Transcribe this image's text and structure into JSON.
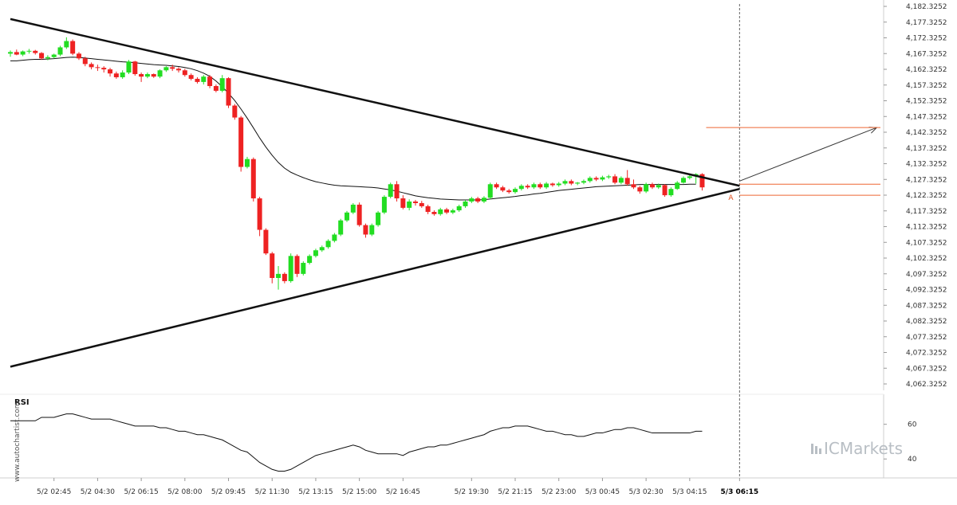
{
  "chart_data": {
    "type": "candlestick",
    "y_ticks": [
      "4,182.3252",
      "4,177.3252",
      "4,172.3252",
      "4,167.3252",
      "4,162.3252",
      "4,157.3252",
      "4,152.3252",
      "4,147.3252",
      "4,142.3252",
      "4,137.3252",
      "4,132.3252",
      "4,127.3252",
      "4,122.3252",
      "4,117.3252",
      "4,112.3252",
      "4,107.3252",
      "4,102.3252",
      "4,097.3252",
      "4,092.3252",
      "4,087.3252",
      "4,082.3252",
      "4,077.3252",
      "4,072.3252",
      "4,067.3252",
      "4,062.3252"
    ],
    "ylim": [
      4062.3252,
      4182.3252
    ],
    "x_ticks": [
      "5/2 02:45",
      "5/2 04:30",
      "5/2 06:15",
      "5/2 08:00",
      "5/2 09:45",
      "5/2 11:30",
      "5/2 13:15",
      "5/2 15:00",
      "5/2 16:45",
      "5/2 19:30",
      "5/2 21:15",
      "5/2 23:00",
      "5/3 00:45",
      "5/3 02:30",
      "5/3 04:15",
      "5/3 06:15"
    ],
    "current_time_label": "5/3 06:15",
    "candles": [
      [
        4167.3,
        4168.3,
        4166.3,
        4167.8
      ],
      [
        4167.8,
        4168.6,
        4166.8,
        4167.0
      ],
      [
        4167.0,
        4168.3,
        4166.5,
        4168.0
      ],
      [
        4168.0,
        4168.8,
        4167.3,
        4168.2
      ],
      [
        4168.2,
        4168.5,
        4167.0,
        4167.5
      ],
      [
        4167.5,
        4167.8,
        4165.3,
        4165.8
      ],
      [
        4165.8,
        4166.8,
        4165.2,
        4166.2
      ],
      [
        4166.2,
        4167.3,
        4165.8,
        4167.0
      ],
      [
        4167.0,
        4169.8,
        4166.5,
        4169.3
      ],
      [
        4169.3,
        4172.5,
        4168.8,
        4171.3
      ],
      [
        4171.3,
        4171.8,
        4166.8,
        4167.3
      ],
      [
        4167.3,
        4167.8,
        4165.3,
        4165.8
      ],
      [
        4165.8,
        4166.3,
        4163.3,
        4164.0
      ],
      [
        4164.0,
        4164.5,
        4162.3,
        4163.0
      ],
      [
        4163.0,
        4163.8,
        4161.8,
        4162.8
      ],
      [
        4162.8,
        4163.3,
        4161.3,
        4162.3
      ],
      [
        4162.3,
        4162.8,
        4160.0,
        4161.0
      ],
      [
        4161.0,
        4161.6,
        4159.3,
        4159.8
      ],
      [
        4159.8,
        4162.0,
        4159.3,
        4161.3
      ],
      [
        4161.3,
        4165.3,
        4160.8,
        4164.8
      ],
      [
        4164.8,
        4165.0,
        4160.3,
        4160.8
      ],
      [
        4160.8,
        4161.3,
        4158.3,
        4160.0
      ],
      [
        4160.0,
        4161.3,
        4159.5,
        4160.8
      ],
      [
        4160.8,
        4161.0,
        4159.6,
        4160.0
      ],
      [
        4160.0,
        4162.3,
        4159.5,
        4162.0
      ],
      [
        4162.0,
        4163.3,
        4161.5,
        4163.0
      ],
      [
        4163.0,
        4163.8,
        4161.8,
        4162.5
      ],
      [
        4162.5,
        4163.0,
        4161.3,
        4162.0
      ],
      [
        4162.0,
        4162.5,
        4160.0,
        4160.5
      ],
      [
        4160.5,
        4161.0,
        4158.8,
        4159.3
      ],
      [
        4159.3,
        4159.8,
        4157.8,
        4158.3
      ],
      [
        4158.3,
        4160.5,
        4157.5,
        4160.0
      ],
      [
        4160.0,
        4160.5,
        4156.3,
        4157.0
      ],
      [
        4157.0,
        4157.5,
        4155.0,
        4155.5
      ],
      [
        4155.5,
        4160.5,
        4155.0,
        4159.5
      ],
      [
        4159.5,
        4159.8,
        4150.0,
        4150.8
      ],
      [
        4150.8,
        4151.3,
        4146.3,
        4147.0
      ],
      [
        4147.0,
        4147.5,
        4129.8,
        4131.3
      ],
      [
        4131.3,
        4134.5,
        4130.8,
        4133.8
      ],
      [
        4133.8,
        4134.3,
        4120.3,
        4121.3
      ],
      [
        4121.3,
        4121.8,
        4109.3,
        4111.3
      ],
      [
        4111.3,
        4111.8,
        4103.3,
        4103.8
      ],
      [
        4103.8,
        4104.3,
        4094.3,
        4096.0
      ],
      [
        4096.0,
        4099.8,
        4092.3,
        4097.3
      ],
      [
        4097.3,
        4097.8,
        4094.3,
        4095.0
      ],
      [
        4095.0,
        4103.8,
        4094.5,
        4103.0
      ],
      [
        4103.0,
        4103.5,
        4096.3,
        4097.3
      ],
      [
        4097.3,
        4101.3,
        4096.8,
        4100.8
      ],
      [
        4100.8,
        4103.5,
        4100.3,
        4103.0
      ],
      [
        4103.0,
        4105.3,
        4102.5,
        4104.8
      ],
      [
        4104.8,
        4106.3,
        4104.3,
        4105.8
      ],
      [
        4105.8,
        4108.3,
        4105.3,
        4107.8
      ],
      [
        4107.8,
        4110.3,
        4107.3,
        4109.8
      ],
      [
        4109.8,
        4114.8,
        4109.3,
        4114.3
      ],
      [
        4114.3,
        4117.3,
        4113.8,
        4116.8
      ],
      [
        4116.8,
        4119.8,
        4116.3,
        4119.3
      ],
      [
        4119.3,
        4120.0,
        4112.3,
        4112.8
      ],
      [
        4112.8,
        4113.3,
        4108.8,
        4109.8
      ],
      [
        4109.8,
        4113.3,
        4109.3,
        4112.8
      ],
      [
        4112.8,
        4117.3,
        4112.3,
        4116.8
      ],
      [
        4116.8,
        4122.3,
        4116.3,
        4121.8
      ],
      [
        4121.8,
        4126.3,
        4121.3,
        4125.8
      ],
      [
        4125.8,
        4126.8,
        4120.3,
        4121.3
      ],
      [
        4121.3,
        4122.3,
        4117.8,
        4118.3
      ],
      [
        4118.3,
        4121.0,
        4117.5,
        4120.3
      ],
      [
        4120.3,
        4120.8,
        4119.0,
        4119.8
      ],
      [
        4119.8,
        4120.5,
        4118.3,
        4118.8
      ],
      [
        4118.8,
        4119.3,
        4116.3,
        4117.0
      ],
      [
        4117.0,
        4117.5,
        4115.8,
        4116.3
      ],
      [
        4116.3,
        4118.3,
        4115.8,
        4117.8
      ],
      [
        4117.8,
        4118.3,
        4116.3,
        4116.8
      ],
      [
        4116.8,
        4118.0,
        4116.3,
        4117.5
      ],
      [
        4117.5,
        4119.3,
        4117.0,
        4118.8
      ],
      [
        4118.8,
        4120.8,
        4118.3,
        4120.3
      ],
      [
        4120.3,
        4121.8,
        4119.8,
        4121.3
      ],
      [
        4121.3,
        4121.8,
        4119.8,
        4120.3
      ],
      [
        4120.3,
        4122.0,
        4119.8,
        4121.5
      ],
      [
        4121.5,
        4126.3,
        4121.0,
        4125.8
      ],
      [
        4125.8,
        4126.3,
        4124.3,
        4124.8
      ],
      [
        4124.8,
        4125.3,
        4123.3,
        4123.8
      ],
      [
        4123.8,
        4124.3,
        4122.8,
        4123.3
      ],
      [
        4123.3,
        4124.8,
        4122.8,
        4124.3
      ],
      [
        4124.3,
        4125.8,
        4123.8,
        4125.3
      ],
      [
        4125.3,
        4125.8,
        4124.3,
        4124.8
      ],
      [
        4124.8,
        4126.3,
        4124.3,
        4125.8
      ],
      [
        4125.8,
        4126.3,
        4124.3,
        4124.8
      ],
      [
        4124.8,
        4126.5,
        4124.3,
        4126.0
      ],
      [
        4126.0,
        4126.3,
        4125.0,
        4125.5
      ],
      [
        4125.5,
        4126.5,
        4125.0,
        4126.0
      ],
      [
        4126.0,
        4127.3,
        4125.5,
        4126.8
      ],
      [
        4126.8,
        4127.3,
        4125.5,
        4126.0
      ],
      [
        4126.0,
        4126.5,
        4125.5,
        4126.3
      ],
      [
        4126.3,
        4127.3,
        4125.8,
        4126.8
      ],
      [
        4126.8,
        4128.3,
        4126.3,
        4127.8
      ],
      [
        4127.8,
        4128.3,
        4126.8,
        4127.3
      ],
      [
        4127.3,
        4128.5,
        4126.8,
        4128.0
      ],
      [
        4128.0,
        4128.8,
        4127.5,
        4128.3
      ],
      [
        4128.3,
        4129.0,
        4125.8,
        4126.3
      ],
      [
        4126.3,
        4128.3,
        4125.8,
        4127.8
      ],
      [
        4127.8,
        4130.3,
        4125.3,
        4125.8
      ],
      [
        4125.8,
        4127.3,
        4124.3,
        4124.8
      ],
      [
        4124.8,
        4125.3,
        4122.8,
        4123.5
      ],
      [
        4123.5,
        4126.3,
        4123.0,
        4125.8
      ],
      [
        4125.8,
        4126.3,
        4124.3,
        4124.8
      ],
      [
        4124.8,
        4126.0,
        4124.3,
        4125.5
      ],
      [
        4125.5,
        4125.8,
        4121.8,
        4122.3
      ],
      [
        4122.3,
        4124.8,
        4121.8,
        4124.3
      ],
      [
        4124.3,
        4126.8,
        4124.0,
        4126.3
      ],
      [
        4126.3,
        4128.3,
        4126.0,
        4127.8
      ],
      [
        4127.8,
        4128.8,
        4127.3,
        4128.3
      ],
      [
        4128.3,
        4129.3,
        4126.0,
        4129.0
      ],
      [
        4129.0,
        4129.3,
        4123.8,
        4124.8
      ]
    ],
    "moving_average": [
      4165.0,
      4165.0,
      4165.2,
      4165.4,
      4165.5,
      4165.5,
      4165.6,
      4165.7,
      4165.9,
      4166.1,
      4166.2,
      4166.1,
      4165.9,
      4165.7,
      4165.5,
      4165.3,
      4165.1,
      4164.9,
      4164.7,
      4164.6,
      4164.4,
      4164.2,
      4164.0,
      4163.8,
      4163.7,
      4163.6,
      4163.4,
      4163.2,
      4162.9,
      4162.5,
      4161.9,
      4161.1,
      4160.1,
      4158.6,
      4156.8,
      4154.7,
      4152.4,
      4149.7,
      4146.8,
      4143.7,
      4140.5,
      4137.6,
      4135.0,
      4132.7,
      4130.9,
      4129.6,
      4128.7,
      4127.9,
      4127.2,
      4126.6,
      4126.2,
      4125.8,
      4125.5,
      4125.3,
      4125.2,
      4125.1,
      4125.0,
      4124.9,
      4124.8,
      4124.6,
      4124.3,
      4124.0,
      4123.6,
      4123.1,
      4122.6,
      4122.1,
      4121.8,
      4121.5,
      4121.3,
      4121.1,
      4121.0,
      4120.9,
      4120.8,
      4120.8,
      4120.8,
      4120.8,
      4120.9,
      4121.1,
      4121.3,
      4121.5,
      4121.7,
      4121.9,
      4122.2,
      4122.4,
      4122.7,
      4122.9,
      4123.2,
      4123.5,
      4123.8,
      4124.0,
      4124.2,
      4124.4,
      4124.6,
      4124.8,
      4125.0,
      4125.1,
      4125.2,
      4125.3,
      4125.4,
      4125.5,
      4125.6,
      4125.7,
      4125.7,
      4125.7,
      4125.7,
      4125.7,
      4125.7,
      4125.7,
      4125.7,
      4125.8,
      4125.8
    ],
    "trend_lines": [
      {
        "from": [
          "5/2 01:00",
          4178.3
        ],
        "to": [
          "5/3 06:15",
          4125.3
        ]
      },
      {
        "from": [
          "5/2 01:00",
          4067.8
        ],
        "to": [
          "5/3 06:15",
          4124.3
        ]
      }
    ],
    "forecast_arrow": {
      "from": [
        "5/3 06:15",
        4126.8
      ],
      "to": [
        "5/3 11:45",
        4143.8
      ]
    },
    "horizontal_levels": [
      4143.8,
      4125.8,
      4122.3
    ],
    "point_label": "A",
    "rsi": {
      "title": "RSI",
      "y_ticks": [
        "60",
        "40"
      ],
      "ylim": [
        30,
        75
      ],
      "values": [
        62,
        62,
        62,
        62,
        62,
        64,
        64,
        64,
        65,
        66,
        66,
        65,
        64,
        63,
        63,
        63,
        63,
        62,
        61,
        60,
        59,
        59,
        59,
        59,
        58,
        58,
        57,
        56,
        56,
        55,
        54,
        54,
        53,
        52,
        51,
        49,
        47,
        45,
        44,
        41,
        38,
        36,
        34,
        33,
        33,
        34,
        36,
        38,
        40,
        42,
        43,
        44,
        45,
        46,
        47,
        48,
        47,
        45,
        44,
        43,
        43,
        43,
        43,
        42,
        44,
        45,
        46,
        47,
        47,
        48,
        48,
        49,
        50,
        51,
        52,
        53,
        54,
        56,
        57,
        58,
        58,
        59,
        59,
        59,
        58,
        57,
        56,
        56,
        55,
        54,
        54,
        53,
        53,
        54,
        55,
        55,
        56,
        57,
        57,
        58,
        58,
        57,
        56,
        55,
        55,
        55,
        55,
        55,
        55,
        55,
        56,
        56
      ]
    }
  },
  "watermark_side": "www.autochartist.com",
  "brand_name": "ICMarkets",
  "colors": {
    "up": "#22dd22",
    "down": "#ee2222",
    "ma": "#111111",
    "trend": "#111111",
    "level": "#ee6633",
    "arrow": "#333333",
    "grid": "#dddddd",
    "brand": "#b8bec4"
  }
}
